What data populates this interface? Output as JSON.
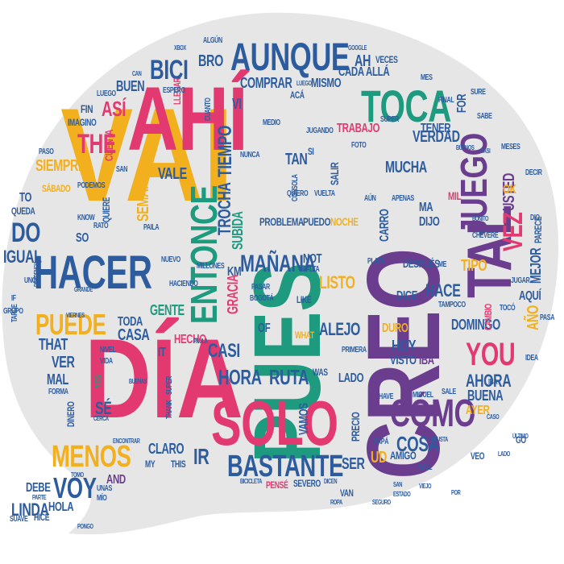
{
  "colors": {
    "pink": "#e23a70",
    "yellow": "#f2b01e",
    "blue": "#2d5c9e",
    "purple": "#6b3d8f",
    "green": "#1e9a7f",
    "gray": "#e6e6e6"
  },
  "words": [
    {
      "text": "VAI",
      "color": "yellow"
    },
    {
      "text": "PUES",
      "color": "green"
    },
    {
      "text": "CREO",
      "color": "purple"
    },
    {
      "text": "DÍA",
      "color": "pink"
    },
    {
      "text": "AHÍ",
      "color": "pink"
    },
    {
      "text": "SOLO",
      "color": "pink"
    },
    {
      "text": "JUEGO",
      "color": "purple"
    },
    {
      "text": "TAL",
      "color": "purple"
    },
    {
      "text": "AUNQUE",
      "color": "blue"
    },
    {
      "text": "ENTONCE",
      "color": "green"
    },
    {
      "text": "HACER",
      "color": "blue"
    },
    {
      "text": "TOCA",
      "color": "green"
    },
    {
      "text": "BASTANTE",
      "color": "blue"
    },
    {
      "text": "CÓMO",
      "color": "purple"
    },
    {
      "text": "MENOS",
      "color": "yellow"
    },
    {
      "text": "VOY",
      "color": "blue"
    },
    {
      "text": "THE",
      "color": "pink"
    },
    {
      "text": "BICI",
      "color": "blue"
    },
    {
      "text": "PUEDE",
      "color": "yellow"
    },
    {
      "text": "DO",
      "color": "blue"
    },
    {
      "text": "YOU",
      "color": "pink"
    },
    {
      "text": "VEZ",
      "color": "pink"
    },
    {
      "text": "MAÑANA",
      "color": "blue"
    },
    {
      "text": "HORA",
      "color": "blue"
    },
    {
      "text": "RUTA",
      "color": "blue"
    },
    {
      "text": "COSA",
      "color": "blue"
    },
    {
      "text": "MUCHA",
      "color": "blue"
    },
    {
      "text": "IGUAL",
      "color": "blue"
    },
    {
      "text": "HACE",
      "color": "blue"
    },
    {
      "text": "LISTO",
      "color": "yellow"
    },
    {
      "text": "ALEJO",
      "color": "blue"
    },
    {
      "text": "CASI",
      "color": "blue"
    },
    {
      "text": "VERDAD",
      "color": "blue"
    },
    {
      "text": "DOMINGO",
      "color": "blue"
    },
    {
      "text": "AHORA",
      "color": "blue"
    },
    {
      "text": "BUENA",
      "color": "blue"
    },
    {
      "text": "TIPO",
      "color": "yellow"
    },
    {
      "text": "IR",
      "color": "blue"
    },
    {
      "text": "LINDA",
      "color": "blue"
    },
    {
      "text": "VALE",
      "color": "blue"
    },
    {
      "text": "ASÍ",
      "color": "pink"
    },
    {
      "text": "SIEMPRE",
      "color": "yellow"
    },
    {
      "text": "TIEMPO",
      "color": "blue"
    },
    {
      "text": "SUBIDA",
      "color": "green"
    },
    {
      "text": "TROCHA",
      "color": "blue"
    },
    {
      "text": "SEMANA",
      "color": "yellow"
    },
    {
      "text": "GRACIA",
      "color": "pink"
    },
    {
      "text": "CASA",
      "color": "blue"
    },
    {
      "text": "GENTE",
      "color": "green"
    },
    {
      "text": "HECHO",
      "color": "pink"
    },
    {
      "text": "TODA",
      "color": "blue"
    },
    {
      "text": "VER",
      "color": "blue"
    },
    {
      "text": "THAT",
      "color": "blue"
    },
    {
      "text": "MAL",
      "color": "blue"
    },
    {
      "text": "SÉ",
      "color": "blue"
    },
    {
      "text": "DEBE",
      "color": "blue"
    },
    {
      "text": "HOLA",
      "color": "blue"
    },
    {
      "text": "AND",
      "color": "purple"
    },
    {
      "text": "CLARO",
      "color": "blue"
    },
    {
      "text": "VAMOS",
      "color": "blue"
    },
    {
      "text": "SER",
      "color": "blue"
    },
    {
      "text": "UD",
      "color": "yellow"
    },
    {
      "text": "HOY",
      "color": "blue"
    },
    {
      "text": "LADO",
      "color": "blue"
    },
    {
      "text": "VISTO",
      "color": "blue"
    },
    {
      "text": "IBA",
      "color": "purple"
    },
    {
      "text": "DURO",
      "color": "yellow"
    },
    {
      "text": "AÑO",
      "color": "yellow"
    },
    {
      "text": "AQUÍ",
      "color": "blue"
    },
    {
      "text": "MEJOR",
      "color": "blue"
    },
    {
      "text": "USTED",
      "color": "purple"
    },
    {
      "text": "AYER",
      "color": "yellow"
    },
    {
      "text": "AH",
      "color": "blue"
    },
    {
      "text": "COMPRAR",
      "color": "blue"
    },
    {
      "text": "MISMO",
      "color": "blue"
    },
    {
      "text": "CADA",
      "color": "blue"
    },
    {
      "text": "ALLÁ",
      "color": "blue"
    },
    {
      "text": "BRO",
      "color": "blue"
    },
    {
      "text": "BUEN",
      "color": "blue"
    },
    {
      "text": "TRABAJO",
      "color": "pink"
    },
    {
      "text": "TENER",
      "color": "blue"
    },
    {
      "text": "TAN",
      "color": "blue"
    },
    {
      "text": "NOT",
      "color": "blue"
    },
    {
      "text": "PROBLEMA",
      "color": "blue"
    },
    {
      "text": "PUEDO",
      "color": "blue"
    },
    {
      "text": "NOCHE",
      "color": "yellow"
    },
    {
      "text": "DIJO",
      "color": "blue"
    },
    {
      "text": "MA",
      "color": "blue"
    },
    {
      "text": "CARRO",
      "color": "blue"
    },
    {
      "text": "DESPUÉS",
      "color": "blue"
    },
    {
      "text": "DICE",
      "color": "blue"
    },
    {
      "text": "OK",
      "color": "yellow"
    },
    {
      "text": "FIN",
      "color": "blue"
    },
    {
      "text": "QUEDA",
      "color": "blue"
    },
    {
      "text": "TO",
      "color": "blue"
    },
    {
      "text": "SO",
      "color": "blue"
    },
    {
      "text": "IT",
      "color": "blue"
    },
    {
      "text": "KM",
      "color": "blue"
    },
    {
      "text": "OF",
      "color": "blue"
    },
    {
      "text": "PRECIO",
      "color": "blue"
    },
    {
      "text": "AMIGO",
      "color": "blue"
    },
    {
      "text": "FOR",
      "color": "blue"
    },
    {
      "text": "VEO",
      "color": "blue"
    },
    {
      "text": "SI",
      "color": "blue"
    },
    {
      "text": "MIL",
      "color": "pink"
    },
    {
      "text": "SALIR",
      "color": "blue"
    },
    {
      "text": "VI",
      "color": "blue"
    },
    {
      "text": "CUENTA",
      "color": "pink"
    },
    {
      "text": "ACÁ",
      "color": "blue"
    },
    {
      "text": "LLEGAR",
      "color": "pink"
    },
    {
      "text": "CAMBIO",
      "color": "pink"
    },
    {
      "text": "VECES",
      "color": "blue"
    },
    {
      "text": "GOOGLE",
      "color": "blue"
    },
    {
      "text": "XBOX",
      "color": "blue"
    },
    {
      "text": "LUEGO",
      "color": "blue"
    },
    {
      "text": "IMAGINO",
      "color": "blue"
    },
    {
      "text": "PASO",
      "color": "blue"
    },
    {
      "text": "SÁBADO",
      "color": "yellow"
    },
    {
      "text": "QUIERE",
      "color": "blue"
    },
    {
      "text": "VIDA",
      "color": "blue"
    },
    {
      "text": "NIVEL",
      "color": "blue"
    },
    {
      "text": "MIGUEL",
      "color": "blue"
    },
    {
      "text": "SEVERO",
      "color": "blue"
    },
    {
      "text": "BOGOTÁ",
      "color": "blue"
    },
    {
      "text": "LIKE",
      "color": "blue"
    },
    {
      "text": "WHAT",
      "color": "yellow"
    },
    {
      "text": "WAS",
      "color": "blue"
    },
    {
      "text": "SUPER",
      "color": "blue"
    },
    {
      "text": "FOTO",
      "color": "blue"
    },
    {
      "text": "CHÉVERE",
      "color": "blue"
    },
    {
      "text": "PARECE",
      "color": "blue"
    },
    {
      "text": "APENAS",
      "color": "blue"
    },
    {
      "text": "PASAR",
      "color": "blue"
    },
    {
      "text": "FALTA",
      "color": "blue"
    },
    {
      "text": "PLATA",
      "color": "blue"
    },
    {
      "text": "NUEVO",
      "color": "blue"
    },
    {
      "text": "MILLONES",
      "color": "blue"
    },
    {
      "text": "HACIENDO",
      "color": "blue"
    },
    {
      "text": "ESPERO",
      "color": "blue"
    },
    {
      "text": "CUANTO",
      "color": "blue"
    },
    {
      "text": "SAN",
      "color": "blue"
    },
    {
      "text": "PODEMOS",
      "color": "blue"
    },
    {
      "text": "GRUPO",
      "color": "blue"
    },
    {
      "text": "FORMA",
      "color": "blue"
    },
    {
      "text": "TARDE",
      "color": "blue"
    },
    {
      "text": "DINERO",
      "color": "blue"
    },
    {
      "text": "HICE",
      "color": "blue"
    },
    {
      "text": "SUAVE",
      "color": "blue"
    },
    {
      "text": "PARTE",
      "color": "blue"
    },
    {
      "text": "MÍO",
      "color": "blue"
    },
    {
      "text": "GUSTA",
      "color": "blue"
    },
    {
      "text": "CASO",
      "color": "blue"
    },
    {
      "text": "VAN",
      "color": "blue"
    },
    {
      "text": "DICEN",
      "color": "blue"
    },
    {
      "text": "BICICLETA",
      "color": "blue"
    },
    {
      "text": "PENSÉ",
      "color": "pink"
    },
    {
      "text": "THANK",
      "color": "blue"
    },
    {
      "text": "THIS",
      "color": "blue"
    },
    {
      "text": "MY",
      "color": "blue"
    },
    {
      "text": "PAPÁ",
      "color": "blue"
    },
    {
      "text": "SALE",
      "color": "blue"
    },
    {
      "text": "TOCÓ",
      "color": "blue"
    },
    {
      "text": "SAN",
      "color": "blue"
    },
    {
      "text": "CERCA",
      "color": "blue"
    },
    {
      "text": "UNAS",
      "color": "blue"
    },
    {
      "text": "YES",
      "color": "green"
    },
    {
      "text": "DECIR",
      "color": "blue"
    },
    {
      "text": "MESES",
      "color": "blue"
    },
    {
      "text": "FINAL",
      "color": "blue"
    },
    {
      "text": "SABE",
      "color": "blue"
    },
    {
      "text": "QUIERO",
      "color": "blue"
    },
    {
      "text": "CONSOLA",
      "color": "blue"
    },
    {
      "text": "VUELTA",
      "color": "blue"
    },
    {
      "text": "PRIMERA",
      "color": "blue"
    },
    {
      "text": "TAMPOCO",
      "color": "blue"
    },
    {
      "text": "IDEA",
      "color": "blue"
    },
    {
      "text": "PASA",
      "color": "blue"
    },
    {
      "text": "ME",
      "color": "blue"
    },
    {
      "text": "KNOW",
      "color": "blue"
    },
    {
      "text": "PAILA",
      "color": "blue"
    },
    {
      "text": "DIFERENCIA",
      "color": "blue"
    },
    {
      "text": "UNO",
      "color": "blue"
    },
    {
      "text": "VIERNES",
      "color": "blue"
    },
    {
      "text": "SUPER",
      "color": "blue"
    },
    {
      "text": "TOMO",
      "color": "blue"
    },
    {
      "text": "PONGO",
      "color": "blue"
    },
    {
      "text": "LUEGO",
      "color": "blue"
    },
    {
      "text": "CASI",
      "color": "blue"
    },
    {
      "text": "PAULA",
      "color": "blue"
    },
    {
      "text": "NUNCA",
      "color": "blue"
    },
    {
      "text": "JUGANDO",
      "color": "blue"
    },
    {
      "text": "ALGÚN",
      "color": "blue"
    },
    {
      "text": "CAN",
      "color": "blue"
    },
    {
      "text": "MEDIO",
      "color": "blue"
    },
    {
      "text": "HAVE",
      "color": "blue"
    },
    {
      "text": "IF",
      "color": "blue"
    },
    {
      "text": "WILL",
      "color": "blue"
    },
    {
      "text": "ESTADO",
      "color": "blue"
    },
    {
      "text": "SEGURO",
      "color": "blue"
    },
    {
      "text": "VIEJO",
      "color": "blue"
    },
    {
      "text": "ÚLTIMO",
      "color": "blue"
    },
    {
      "text": "BONITO",
      "color": "blue"
    },
    {
      "text": "LADO",
      "color": "blue"
    },
    {
      "text": "JUGAR",
      "color": "blue"
    },
    {
      "text": "SURE",
      "color": "blue"
    },
    {
      "text": "GO",
      "color": "blue"
    },
    {
      "text": "AÚN",
      "color": "blue"
    },
    {
      "text": "RATO",
      "color": "blue"
    },
    {
      "text": "MES",
      "color": "blue"
    },
    {
      "text": "DIO",
      "color": "blue"
    },
    {
      "text": "IBA",
      "color": "blue"
    },
    {
      "text": "BUENOS",
      "color": "blue"
    },
    {
      "text": "GRANDE",
      "color": "blue"
    },
    {
      "text": "ENCONTRAR",
      "color": "blue"
    },
    {
      "text": "BUENAS",
      "color": "blue"
    },
    {
      "text": "ROPA",
      "color": "blue"
    },
    {
      "text": "POR",
      "color": "blue"
    }
  ]
}
